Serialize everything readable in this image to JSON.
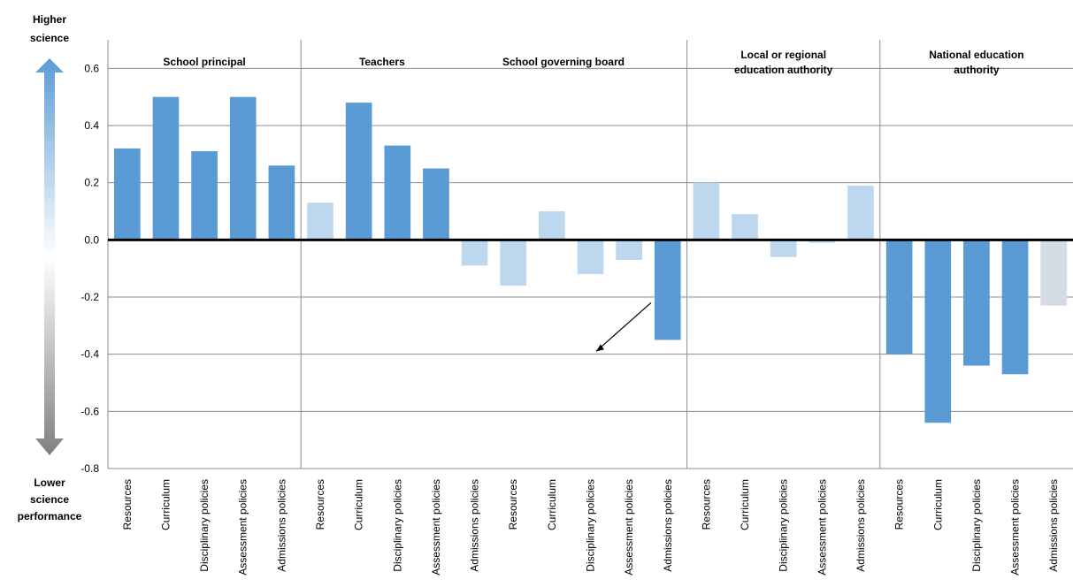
{
  "side_labels": {
    "top": [
      "Higher",
      "science"
    ],
    "bottom": [
      "Lower",
      "science",
      "performance"
    ]
  },
  "colors": {
    "significant": "#5B9BD5",
    "not_significant": "#BDD7EE",
    "last_bar_not_significant": "#D6DCE5",
    "gridline": "#8C8C8C",
    "zero_line": "#000000",
    "arrow_top": "#5B9BD5",
    "arrow_bottom": "#808080"
  },
  "chart_data": {
    "type": "bar",
    "ylim": [
      -0.8,
      0.7
    ],
    "yticks": [
      0.6,
      0.4,
      0.2,
      0.0,
      -0.2,
      -0.4,
      -0.6,
      -0.8
    ],
    "ytick_labels": [
      "0.6",
      "0.4",
      "0.2",
      "0.0",
      "-0.2",
      "-0.4",
      "-0.6",
      "-0.8"
    ],
    "grid": true,
    "groups": [
      {
        "label": [
          "School principal"
        ],
        "categories": [
          "Resources",
          "Curriculum",
          "Disciplinary policies",
          "Assessment policies",
          "Admissions policies"
        ],
        "values": [
          0.32,
          0.5,
          0.31,
          0.5,
          0.26
        ],
        "significant": [
          true,
          true,
          true,
          true,
          true
        ]
      },
      {
        "label": [
          "Teachers"
        ],
        "categories": [
          "Resources",
          "Curriculum",
          "Disciplinary policies",
          "Assessment policies",
          "Admissions policies"
        ],
        "values": [
          0.13,
          0.48,
          0.33,
          0.25,
          -0.09
        ],
        "significant": [
          false,
          true,
          true,
          true,
          false
        ]
      },
      {
        "label": [
          "School governing board"
        ],
        "categories": [
          "Resources",
          "Curriculum",
          "Disciplinary policies",
          "Assessment policies",
          "Admissions policies"
        ],
        "values": [
          -0.16,
          0.1,
          -0.12,
          -0.07,
          -0.35
        ],
        "significant": [
          false,
          false,
          false,
          false,
          true
        ]
      },
      {
        "label": [
          "Local or regional",
          "education authority"
        ],
        "categories": [
          "Resources",
          "Curriculum",
          "Disciplinary policies",
          "Assessment policies",
          "Admissions policies"
        ],
        "values": [
          0.2,
          0.09,
          -0.06,
          -0.01,
          0.19
        ],
        "significant": [
          false,
          false,
          false,
          false,
          false
        ]
      },
      {
        "label": [
          "National education",
          "authority"
        ],
        "categories": [
          "Resources",
          "Curriculum",
          "Disciplinary policies",
          "Assessment policies",
          "Admissions policies"
        ],
        "values": [
          -0.4,
          -0.64,
          -0.44,
          -0.47,
          -0.23
        ],
        "significant": [
          true,
          true,
          true,
          true,
          false
        ]
      }
    ]
  }
}
